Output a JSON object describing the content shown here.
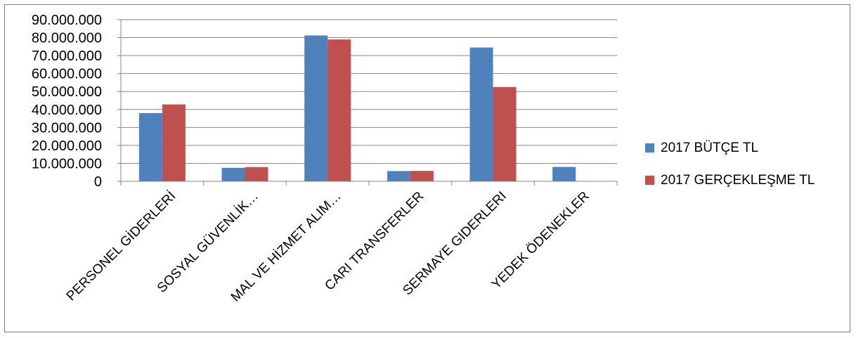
{
  "chart_data": {
    "type": "bar",
    "categories": [
      "PERSONEL GİDERLERİ",
      "SOSYAL GÜVENLİK…",
      "MAL VE HİZMET ALIM…",
      "CARI TRANSFERLER",
      "SERMAYE GIDERLERI",
      "YEDEK ÖDENEKLER"
    ],
    "series": [
      {
        "name": "2017 BÜTÇE TL",
        "color": "#4f81bd",
        "values": [
          38000000,
          7500000,
          81200000,
          5700000,
          74500000,
          8000000
        ]
      },
      {
        "name": "2017 GERÇEKLEŞME TL",
        "color": "#c0504d",
        "values": [
          42800000,
          7900000,
          79000000,
          5800000,
          52500000,
          0
        ]
      }
    ],
    "y_ticks": [
      "0",
      "10.000.000",
      "20.000.000",
      "30.000.000",
      "40.000.000",
      "50.000.000",
      "60.000.000",
      "70.000.000",
      "80.000.000",
      "90.000.000"
    ],
    "ylim": [
      0,
      90000000
    ],
    "grid": true,
    "legend_position": "right",
    "title": "",
    "xlabel": "",
    "ylabel": ""
  }
}
